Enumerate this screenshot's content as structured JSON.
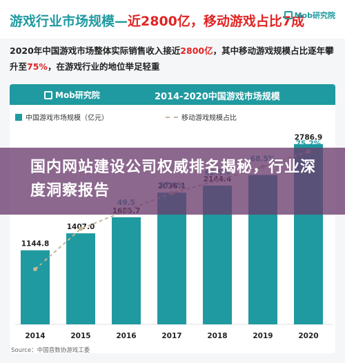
{
  "headline": {
    "part1": "游戏行业市场规模—",
    "part2": "近2800亿，移动游戏占比7成"
  },
  "brand": "Mob研究院",
  "summary": {
    "s1": "2020年中国游戏市场整体实际销售收入接近",
    "n1": "2800亿",
    "s2": "，其中移动游戏规模占比逐年攀升至",
    "n2": "75%",
    "s3": "，在游戏行业的地位举足轻重"
  },
  "panel": {
    "logo": "Mob研究院",
    "title": "2014-2020中国游戏市场规模"
  },
  "legend": {
    "bar": "中国游戏市场规模（亿元）",
    "line": "移动游戏规模占比"
  },
  "overlay": {
    "text": "国内网站建设公司权威排名揭秘，行业深度洞察报告"
  },
  "source": "Source：中国音数协游戏工委",
  "colors": {
    "bar": "#1f9aa0",
    "line": "#c9b59a",
    "pct_label": "#1f9aa0",
    "overlay": "#6c3c6e"
  },
  "chart_data": {
    "type": "bar",
    "title": "2014-2020中国游戏市场规模",
    "categories": [
      "2014",
      "2015",
      "2016",
      "2017",
      "2018",
      "2019",
      "2020"
    ],
    "series": [
      {
        "name": "中国游戏市场规模（亿元）",
        "type": "bar",
        "values": [
          1144.8,
          1407.0,
          1655.7,
          2036.1,
          2144.4,
          null,
          2786.9
        ],
        "labels": [
          "1144.8",
          "1407.0",
          "1655.7",
          "2036.1",
          "2144.4",
          "",
          "2786.9"
        ]
      },
      {
        "name": "移动游戏规模占比",
        "type": "line",
        "values": [
          24.0,
          41.5,
          49.5,
          57.0,
          62.5,
          68.5,
          75.2
        ],
        "labels": [
          "24.0",
          "",
          "49.5",
          "57.0%",
          "62.5%",
          "68.5%",
          "75.2%"
        ]
      }
    ],
    "ylim": [
      0,
      3200
    ],
    "y2lim": [
      0,
      90
    ],
    "legend": "top",
    "grid": false,
    "xlabel": "",
    "ylabel": ""
  }
}
